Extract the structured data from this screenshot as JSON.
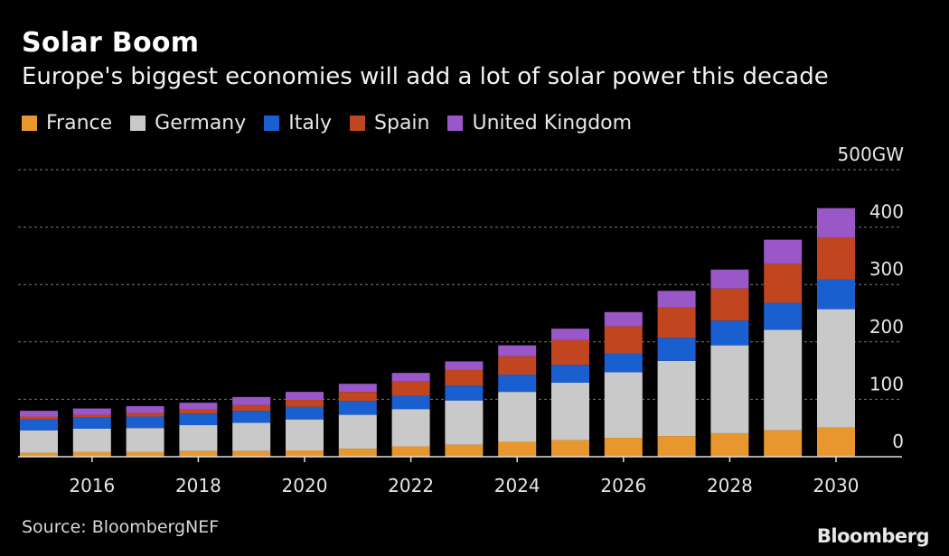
{
  "title": "Solar Boom",
  "subtitle": "Europe's biggest economies will add a lot of solar power this decade",
  "source": "Source: BloombergNEF",
  "brand": "Bloomberg",
  "legend": [
    {
      "name": "France",
      "color": "#e8972e"
    },
    {
      "name": "Germany",
      "color": "#c9c9c9"
    },
    {
      "name": "Italy",
      "color": "#1a5fd0"
    },
    {
      "name": "Spain",
      "color": "#c1461f"
    },
    {
      "name": "United Kingdom",
      "color": "#9a57c8"
    }
  ],
  "chart_data": {
    "type": "bar",
    "stacked": true,
    "categories": [
      "2015",
      "2016",
      "2017",
      "2018",
      "2019",
      "2020",
      "2021",
      "2022",
      "2023",
      "2024",
      "2025",
      "2026",
      "2027",
      "2028",
      "2029",
      "2030"
    ],
    "x_tick_labels": [
      "2016",
      "2018",
      "2020",
      "2022",
      "2024",
      "2026",
      "2028",
      "2030"
    ],
    "y_tick_labels": [
      "0",
      "100",
      "200",
      "300",
      "400",
      "500GW"
    ],
    "ylim": [
      0,
      500
    ],
    "unit": "GW",
    "grid": true,
    "legend_position": "top-left",
    "series": [
      {
        "name": "France",
        "color": "#e8972e",
        "values": [
          7,
          8,
          8,
          10,
          10,
          11,
          14,
          18,
          21,
          26,
          29,
          33,
          36,
          41,
          46,
          51
        ]
      },
      {
        "name": "Germany",
        "color": "#c9c9c9",
        "values": [
          39,
          41,
          42,
          45,
          49,
          54,
          59,
          65,
          77,
          87,
          100,
          114,
          131,
          153,
          175,
          206
        ]
      },
      {
        "name": "Italy",
        "color": "#1a5fd0",
        "values": [
          19,
          19,
          20,
          20,
          21,
          22,
          24,
          23,
          26,
          30,
          31,
          33,
          40,
          43,
          47,
          52
        ]
      },
      {
        "name": "Spain",
        "color": "#c1461f",
        "values": [
          5,
          5,
          6,
          7,
          10,
          12,
          16,
          25,
          27,
          32,
          43,
          47,
          53,
          56,
          68,
          73
        ]
      },
      {
        "name": "United Kingdom",
        "color": "#9a57c8",
        "values": [
          10,
          11,
          12,
          12,
          14,
          14,
          14,
          15,
          15,
          19,
          20,
          25,
          29,
          33,
          42,
          51
        ]
      }
    ]
  }
}
